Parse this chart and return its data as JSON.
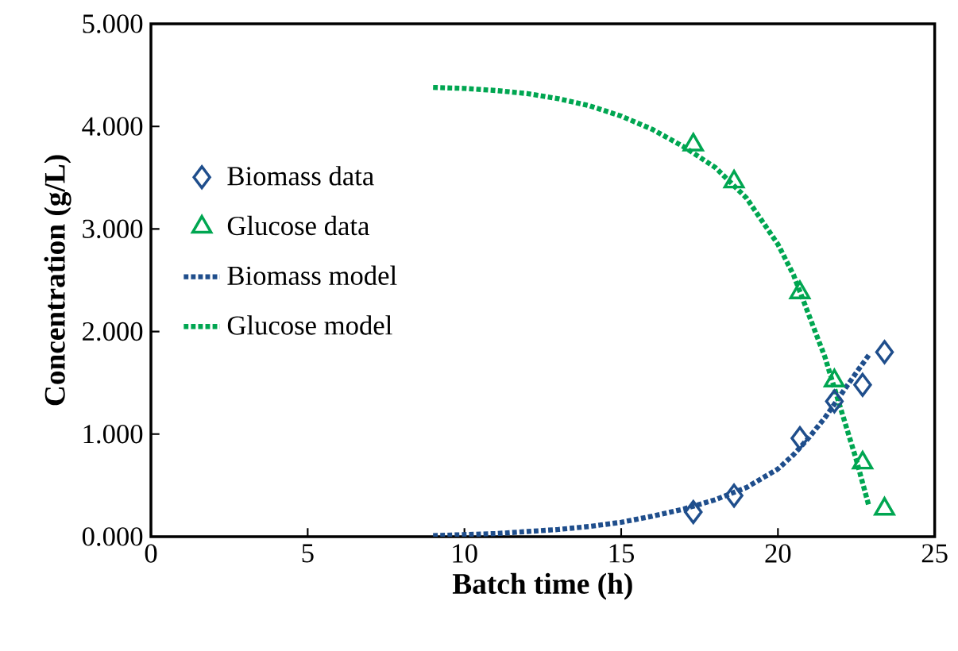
{
  "chart_data": {
    "type": "line",
    "xlabel": "Batch time (h)",
    "ylabel": "Concentration (g/L)",
    "xlim": [
      0,
      25
    ],
    "xticks": [
      0,
      5,
      10,
      15,
      20,
      25
    ],
    "ylim": [
      0,
      5
    ],
    "yticks": [
      {
        "value": 0,
        "label": "0.000"
      },
      {
        "value": 1,
        "label": "1.000"
      },
      {
        "value": 2,
        "label": "2.000"
      },
      {
        "value": 3,
        "label": "3.000"
      },
      {
        "value": 4,
        "label": "4.000"
      },
      {
        "value": 5,
        "label": "5.000"
      }
    ],
    "legend": "left",
    "grid": false,
    "series": [
      {
        "name": "Biomass data",
        "type": "scatter",
        "marker": "diamond",
        "color": "#1f4e8c",
        "x": [
          17.3,
          18.6,
          20.7,
          21.8,
          22.7,
          23.4
        ],
        "values": [
          0.24,
          0.4,
          0.96,
          1.32,
          1.48,
          1.8
        ]
      },
      {
        "name": "Glucose data",
        "type": "scatter",
        "marker": "triangle",
        "color": "#00a651",
        "x": [
          17.3,
          18.6,
          20.7,
          21.8,
          22.7,
          23.4
        ],
        "values": [
          3.82,
          3.46,
          2.38,
          1.52,
          0.72,
          0.27
        ]
      },
      {
        "name": "Biomass model",
        "type": "line",
        "line_style": "dotted",
        "color": "#1f4e8c",
        "x": [
          9,
          10,
          11,
          12,
          13,
          14,
          15,
          16,
          17,
          18,
          19,
          20,
          20.5,
          21,
          21.5,
          22,
          22.5,
          22.9
        ],
        "values": [
          0.01,
          0.02,
          0.03,
          0.05,
          0.07,
          0.1,
          0.14,
          0.2,
          0.27,
          0.36,
          0.48,
          0.66,
          0.8,
          0.97,
          1.16,
          1.38,
          1.6,
          1.77
        ]
      },
      {
        "name": "Glucose model",
        "type": "line",
        "line_style": "dotted",
        "color": "#00a651",
        "x": [
          9,
          10,
          11,
          12,
          13,
          14,
          15,
          16,
          17,
          18,
          19,
          20,
          20.5,
          21,
          21.5,
          22,
          22.5,
          22.9
        ],
        "values": [
          4.38,
          4.37,
          4.35,
          4.32,
          4.27,
          4.2,
          4.1,
          3.97,
          3.8,
          3.6,
          3.3,
          2.85,
          2.55,
          2.15,
          1.75,
          1.25,
          0.75,
          0.3
        ]
      }
    ]
  }
}
